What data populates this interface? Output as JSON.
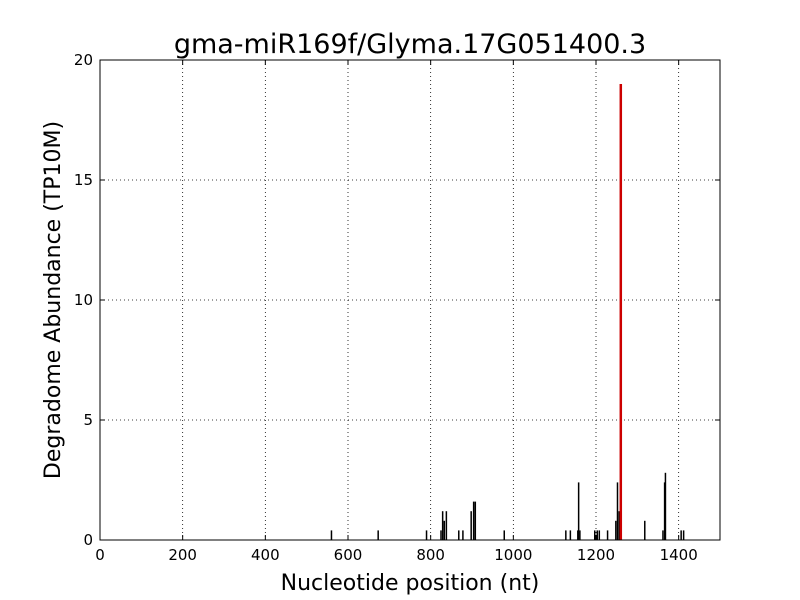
{
  "chart_data": {
    "type": "bar",
    "title": "gma-miR169f/Glyma.17G051400.3",
    "xlabel": "Nucleotide position (nt)",
    "ylabel": "Degradome Abundance (TP10M)",
    "xlim": [
      0,
      1500
    ],
    "ylim": [
      0,
      20
    ],
    "xticks": [
      0,
      200,
      400,
      600,
      800,
      1000,
      1200,
      1400
    ],
    "yticks": [
      0,
      5,
      10,
      15,
      20
    ],
    "xtick_labels": [
      "0",
      "200",
      "400",
      "600",
      "800",
      "1000",
      "1200",
      "1400"
    ],
    "ytick_labels": [
      "0",
      "5",
      "10",
      "15",
      "20"
    ],
    "grid": true,
    "colors": {
      "default": "#000000",
      "highlight": "#cc0000"
    },
    "series": [
      {
        "x": [
          560,
          673,
          790,
          825,
          829,
          833,
          838,
          868,
          878,
          898,
          904,
          908,
          978,
          1127,
          1138,
          1156,
          1158,
          1161,
          1197,
          1203,
          1208,
          1228,
          1248,
          1252,
          1256,
          1318,
          1362,
          1366,
          1368,
          1406,
          1412
        ],
        "values": [
          0.4,
          0.4,
          0.4,
          0.4,
          1.2,
          0.8,
          1.2,
          0.4,
          0.4,
          1.2,
          1.6,
          1.6,
          0.4,
          0.4,
          0.4,
          0.4,
          2.4,
          0.4,
          0.4,
          0.4,
          0.4,
          0.4,
          0.8,
          2.4,
          1.2,
          0.8,
          0.4,
          2.4,
          2.8,
          0.4,
          0.4
        ]
      },
      {
        "x": [
          1260
        ],
        "values": [
          19.0
        ],
        "highlight": true
      }
    ]
  }
}
